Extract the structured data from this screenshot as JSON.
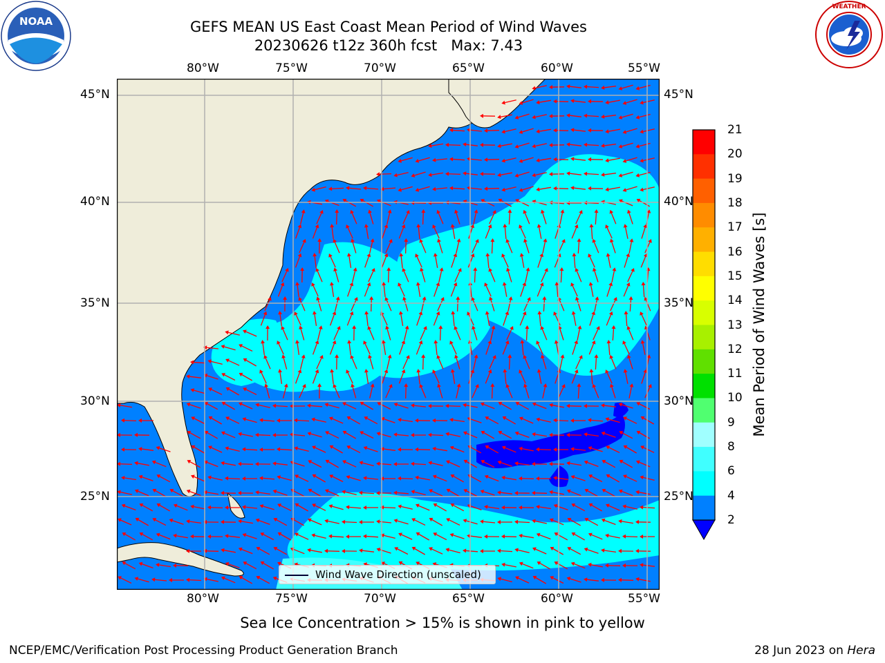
{
  "title": "GEFS MEAN US East Coast Mean Period of Wind Waves",
  "subtitle_line": "20230626 t12z 360h fcst   Max: 7.43",
  "logos": {
    "left": "NOAA",
    "right": "NATIONAL WEATHER SERVICE"
  },
  "map": {
    "lon_labels": [
      "80°W",
      "75°W",
      "70°W",
      "65°W",
      "60°W",
      "55°W"
    ],
    "lat_labels": [
      "45°N",
      "40°N",
      "35°N",
      "30°N",
      "25°N"
    ],
    "land_color": "#efedda",
    "ocean_color": "#0080ff",
    "arrow_color": "#ff0000",
    "legend_label": "Wind Wave Direction (unscaled)"
  },
  "colorbar": {
    "label": "Mean Period of Wind Waves [s]",
    "ticks": [
      "2",
      "4",
      "6",
      "8",
      "9",
      "10",
      "11",
      "12",
      "13",
      "14",
      "15",
      "16",
      "17",
      "18",
      "19",
      "20",
      "21"
    ],
    "colors": [
      "#0000ff",
      "#0080ff",
      "#00ffff",
      "#40ffff",
      "#80ffff",
      "#a0ffff",
      "#60ff80",
      "#40ff40",
      "#00e000",
      "#60ee00",
      "#a0f000",
      "#d0ff00",
      "#ffff00",
      "#ffee00",
      "#ffc000",
      "#ffa000",
      "#ff8000",
      "#ff6000",
      "#ff3000",
      "#ff0000"
    ]
  },
  "bottom_note": "Sea Ice Concentration > 15% is shown in pink to yellow",
  "footer_left": "NCEP/EMC/Verification Post Processing Product Generation Branch",
  "footer_date": "28 Jun 2023 on ",
  "footer_host": "Hera"
}
